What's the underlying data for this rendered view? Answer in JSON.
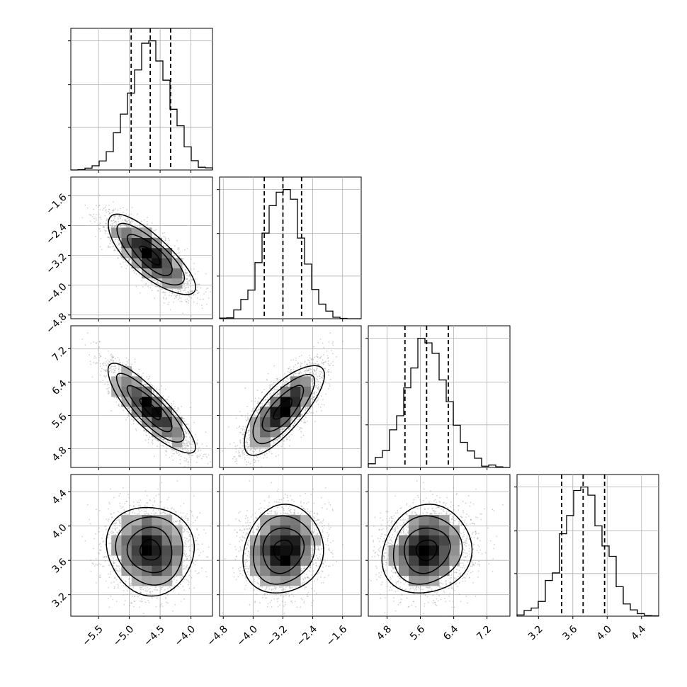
{
  "chart_data": {
    "type": "corner",
    "grid": true,
    "parameters": [
      {
        "index": 0,
        "range": [
          -5.95,
          -3.65
        ],
        "ticks": [
          -5.5,
          -5.0,
          -4.5,
          -4.0
        ],
        "tick_labels": [
          "−5.5",
          "−5.0",
          "−4.5",
          "−4.0"
        ],
        "quantiles": [
          -4.97,
          -4.66,
          -4.33
        ],
        "mean": -4.66,
        "sd": 0.33
      },
      {
        "index": 1,
        "range": [
          -4.9,
          -1.1
        ],
        "ticks": [
          -4.8,
          -4.0,
          -3.2,
          -2.4,
          -1.6
        ],
        "tick_labels": [
          "−4.8",
          "−4.0",
          "−3.2",
          "−2.4",
          "−1.6"
        ],
        "quantiles": [
          -3.7,
          -3.2,
          -2.7
        ],
        "mean": -3.2,
        "sd": 0.5
      },
      {
        "index": 2,
        "range": [
          4.35,
          7.75
        ],
        "ticks": [
          4.8,
          5.6,
          6.4,
          7.2
        ],
        "tick_labels": [
          "4.8",
          "5.6",
          "6.4",
          "7.2"
        ],
        "quantiles": [
          5.23,
          5.75,
          6.27
        ],
        "mean": 5.75,
        "sd": 0.5
      },
      {
        "index": 3,
        "range": [
          2.95,
          4.6
        ],
        "ticks": [
          3.2,
          3.6,
          4.0,
          4.4
        ],
        "tick_labels": [
          "3.2",
          "3.6",
          "4.0",
          "4.4"
        ],
        "quantiles": [
          3.47,
          3.72,
          3.97
        ],
        "mean": 3.72,
        "sd": 0.24
      }
    ],
    "correlations": [
      [
        0,
        1,
        -0.78
      ],
      [
        0,
        2,
        -0.85
      ],
      [
        1,
        2,
        0.75
      ],
      [
        0,
        3,
        -0.05
      ],
      [
        1,
        3,
        0.1
      ],
      [
        2,
        3,
        0.1
      ]
    ],
    "histogram": {
      "bins": 20,
      "style": "step",
      "color": "#000000"
    },
    "contour_color": "#000000",
    "point_color": "#9a9a9a"
  }
}
